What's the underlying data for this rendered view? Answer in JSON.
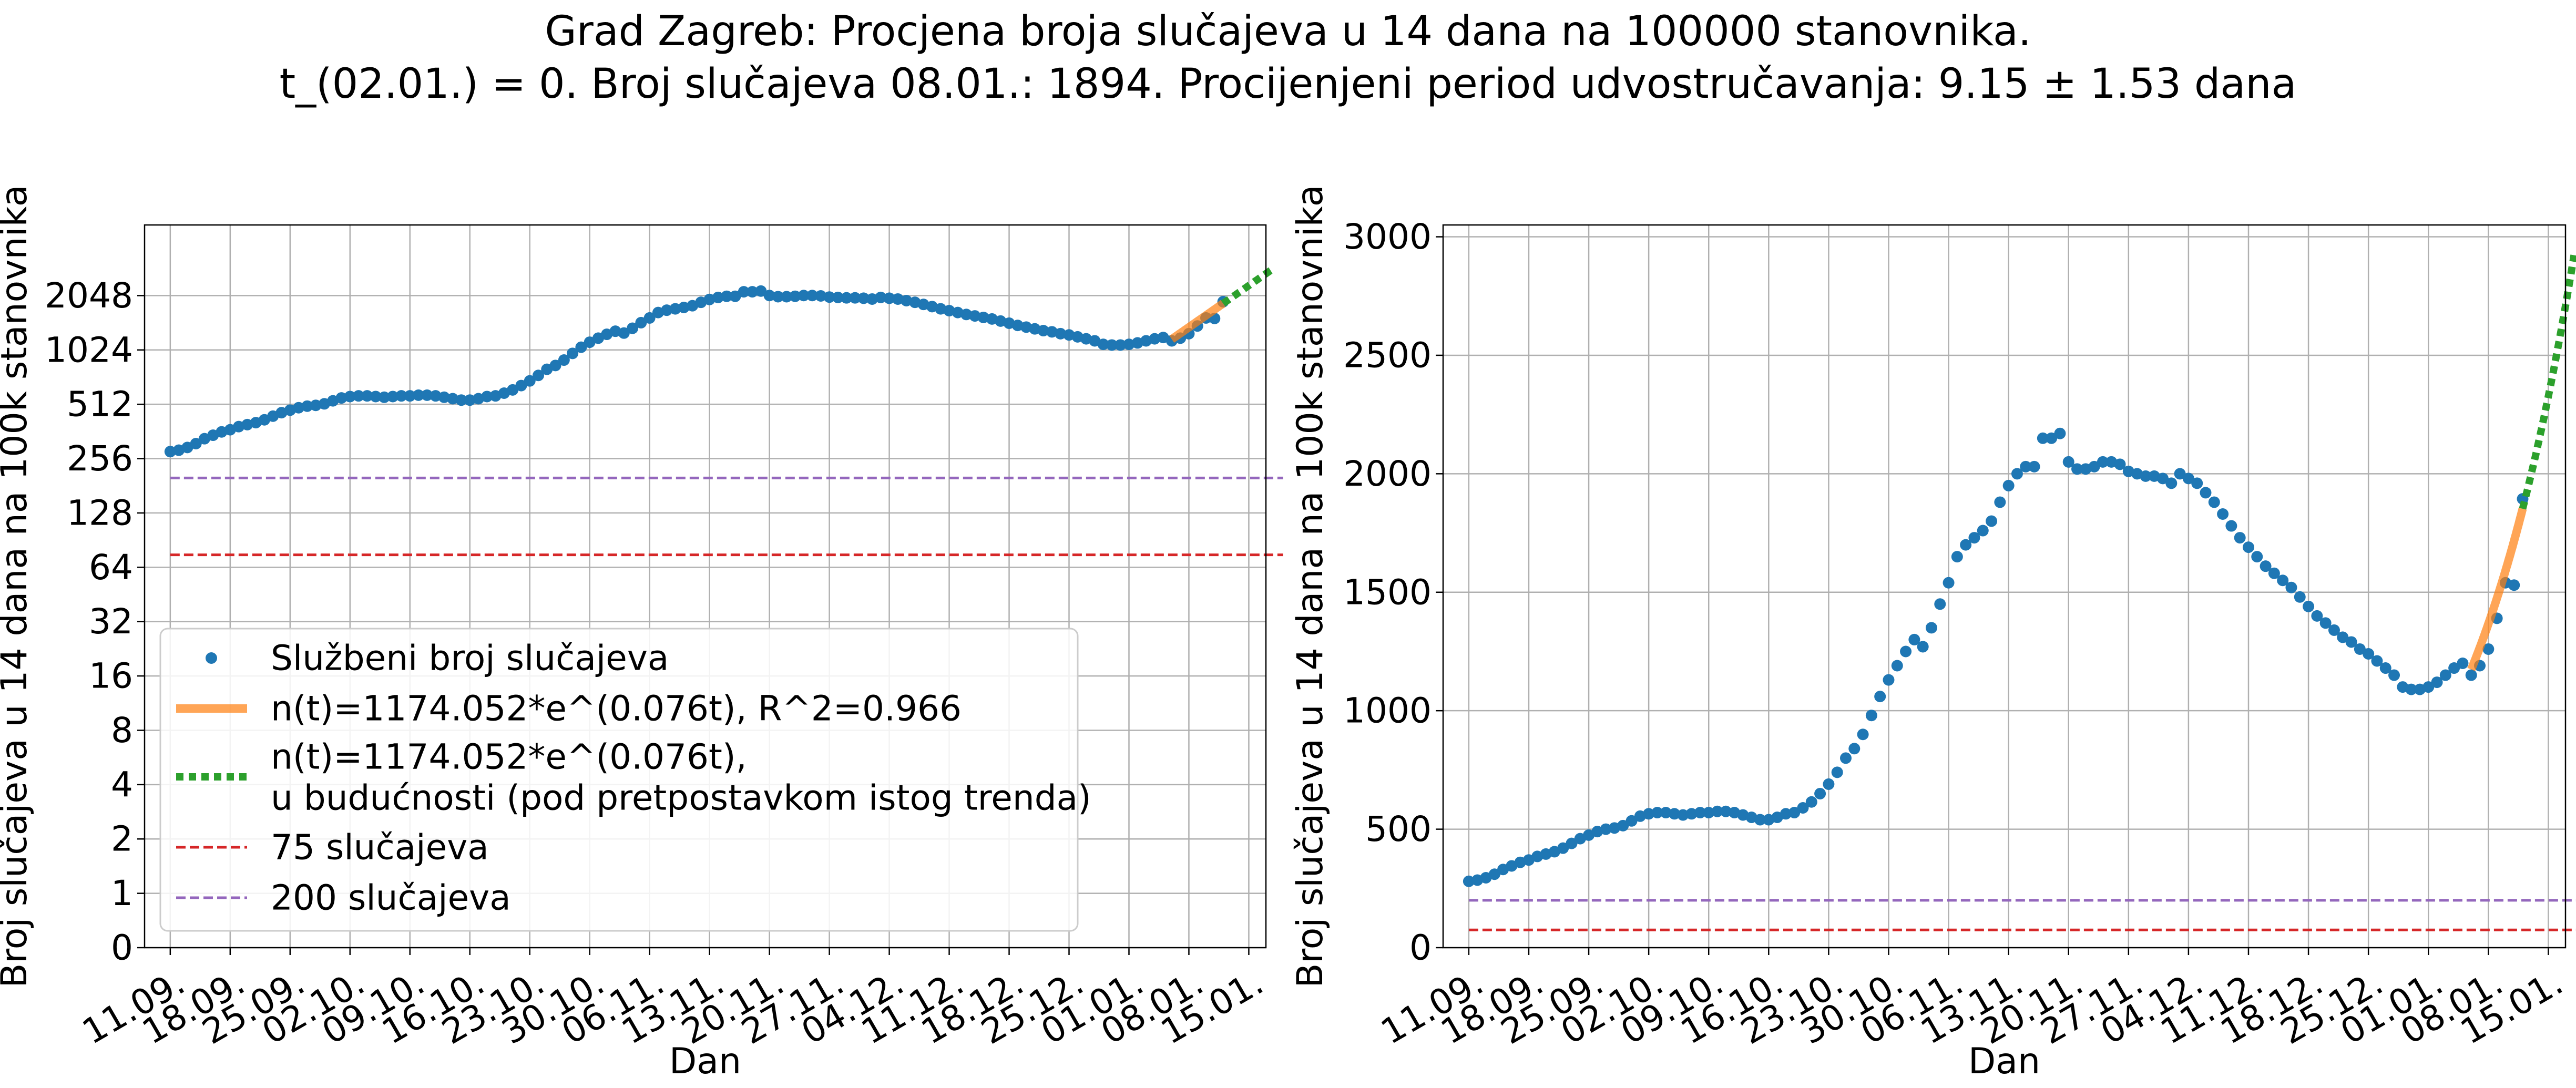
{
  "title_line1": "Grad Zagreb: Procjena broja slučajeva u 14 dana na 100000 stanovnika.",
  "title_line2": "t_(02.01.) = 0. Broj slučajeva 08.01.: 1894. Procijenjeni period udvostručavanja: 9.15 ± 1.53 dana",
  "colors": {
    "official": "#1f77b4",
    "fit": "#ff7f0e",
    "forecast": "#2ca02c",
    "line75": "#d62728",
    "line200": "#9467bd",
    "grid": "#b0b0b0"
  },
  "chart_data": [
    {
      "type": "scatter",
      "panel": "left",
      "scale": "log2",
      "xlabel": "Dan",
      "ylabel": "Broj slučajeva u 14 dana na 100k stanovnika",
      "x_ticks": [
        "11.09.",
        "18.09.",
        "25.09.",
        "02.10.",
        "09.10.",
        "16.10.",
        "23.10.",
        "30.10.",
        "06.11.",
        "13.11.",
        "20.11.",
        "27.11.",
        "04.12.",
        "11.12.",
        "18.12.",
        "25.12.",
        "01.01.",
        "08.01.",
        "15.01."
      ],
      "y_ticks": [
        "0",
        "1",
        "2",
        "4",
        "8",
        "16",
        "32",
        "64",
        "128",
        "256",
        "512",
        "1024",
        "2048"
      ],
      "grid": true,
      "legend_position": "lower-left",
      "legend": [
        "Službeni broj slučajeva",
        "n(t)=1174.052*e^(0.076t), R^2=0.966",
        "n(t)=1174.052*e^(0.076t),",
        "u budućnosti (pod pretpostavkom istog trenda)",
        "75 slučajeva",
        "200 slučajeva"
      ]
    },
    {
      "type": "scatter",
      "panel": "right",
      "scale": "linear",
      "xlabel": "Dan",
      "ylabel": "Broj slučajeva u 14 dana na 100k stanovnika",
      "x_ticks": [
        "11.09.",
        "18.09.",
        "25.09.",
        "02.10.",
        "09.10.",
        "16.10.",
        "23.10.",
        "30.10.",
        "06.11.",
        "13.11.",
        "20.11.",
        "27.11.",
        "04.12.",
        "11.12.",
        "18.12.",
        "25.12.",
        "01.01.",
        "08.01.",
        "15.01."
      ],
      "y_ticks": [
        "0",
        "500",
        "1000",
        "1500",
        "2000",
        "2500",
        "3000"
      ],
      "ylim": [
        0,
        3050
      ],
      "grid": true
    }
  ],
  "series_shared": {
    "official": {
      "name": "Službeni broj slučajeva",
      "start_date": "11.09.",
      "values": [
        280,
        285,
        295,
        310,
        330,
        345,
        360,
        370,
        385,
        395,
        405,
        420,
        440,
        460,
        475,
        490,
        500,
        505,
        515,
        535,
        555,
        565,
        570,
        570,
        565,
        560,
        565,
        570,
        570,
        575,
        575,
        570,
        560,
        550,
        540,
        540,
        550,
        565,
        570,
        590,
        615,
        650,
        690,
        740,
        800,
        840,
        900,
        980,
        1060,
        1130,
        1190,
        1250,
        1300,
        1270,
        1350,
        1450,
        1540,
        1650,
        1700,
        1730,
        1760,
        1800,
        1880,
        1950,
        2000,
        2030,
        2030,
        2150,
        2150,
        2170,
        2050,
        2020,
        2020,
        2030,
        2050,
        2050,
        2040,
        2010,
        2000,
        1990,
        1990,
        1980,
        1960,
        2000,
        1980,
        1960,
        1920,
        1880,
        1830,
        1780,
        1730,
        1690,
        1650,
        1610,
        1580,
        1550,
        1520,
        1480,
        1440,
        1400,
        1370,
        1340,
        1310,
        1290,
        1260,
        1240,
        1210,
        1180,
        1150,
        1100,
        1090,
        1090,
        1100,
        1120,
        1150,
        1180,
        1200,
        1150,
        1190,
        1260,
        1390,
        1540,
        1530,
        1894
      ]
    },
    "fit": {
      "name": "n(t)=1174.052*e^(0.076t), R^2=0.966",
      "a": 1174.052,
      "b": 0.076,
      "t0_date": "02.01.",
      "t_from": 0,
      "t_to": 6
    },
    "forecast": {
      "name": "n(t)=1174.052*e^(0.076t), u budućnosti (pod pretpostavkom istog trenda)",
      "t_from": 6,
      "t_to": 12
    },
    "ref_lines": [
      {
        "name": "75 slučajeva",
        "value": 75
      },
      {
        "name": "200 slučajeva",
        "value": 200
      }
    ]
  }
}
